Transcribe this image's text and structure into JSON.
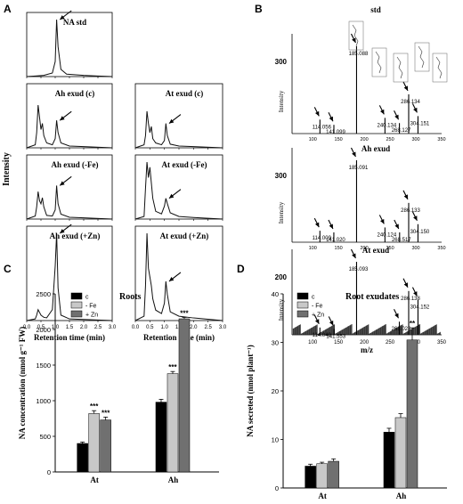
{
  "panel_letters": [
    "A",
    "B",
    "C",
    "D"
  ],
  "chart_data": [
    {
      "id": "A",
      "type": "line",
      "ylabel": "Intensity",
      "xlabel": "Retention time (min)",
      "xlim": [
        0,
        3
      ],
      "x_ticks": [
        "0.0",
        "0.5",
        "1.0",
        "1.5",
        "2.0",
        "2.5",
        "3.0"
      ],
      "subplots": [
        {
          "name": "NA std",
          "x": [
            0.3,
            0.6,
            0.9,
            1.0,
            1.05,
            1.1,
            1.2,
            1.4,
            2.0,
            2.5
          ],
          "y": [
            1,
            2,
            6,
            25,
            95,
            50,
            12,
            4,
            2,
            1
          ]
        },
        {
          "name": "Ah exud (c)",
          "x": [
            0.3,
            0.35,
            0.4,
            0.45,
            0.5,
            0.55,
            0.6,
            0.7,
            0.9,
            1.0,
            1.05,
            1.1,
            1.2,
            1.5,
            2.0
          ],
          "y": [
            5,
            25,
            70,
            50,
            30,
            40,
            20,
            8,
            5,
            15,
            45,
            25,
            8,
            3,
            2
          ]
        },
        {
          "name": "At exud (c)",
          "x": [
            0.3,
            0.35,
            0.4,
            0.45,
            0.5,
            0.55,
            0.6,
            0.7,
            0.9,
            1.0,
            1.05,
            1.1,
            1.2,
            1.5,
            2.0
          ],
          "y": [
            5,
            20,
            60,
            40,
            25,
            35,
            15,
            8,
            5,
            12,
            40,
            20,
            6,
            3,
            2
          ]
        },
        {
          "name": "Ah exud (-Fe)",
          "x": [
            0.3,
            0.35,
            0.4,
            0.45,
            0.5,
            0.55,
            0.6,
            0.7,
            0.9,
            1.0,
            1.05,
            1.1,
            1.2,
            1.5,
            2.0
          ],
          "y": [
            5,
            20,
            45,
            30,
            25,
            35,
            20,
            6,
            5,
            15,
            55,
            25,
            8,
            3,
            2
          ]
        },
        {
          "name": "At exud (-Fe)",
          "x": [
            0.3,
            0.35,
            0.4,
            0.45,
            0.5,
            0.55,
            0.6,
            0.7,
            0.9,
            1.0,
            1.05,
            1.1,
            1.2,
            1.5,
            2.0
          ],
          "y": [
            5,
            60,
            110,
            80,
            100,
            70,
            40,
            15,
            10,
            25,
            40,
            30,
            12,
            5,
            3
          ]
        },
        {
          "name": "Ah exud (+Zn)",
          "x": [
            0.3,
            0.35,
            0.4,
            0.45,
            0.5,
            0.55,
            0.6,
            0.7,
            0.9,
            1.0,
            1.05,
            1.1,
            1.2,
            1.5,
            2.0
          ],
          "y": [
            3,
            10,
            20,
            15,
            10,
            8,
            6,
            5,
            20,
            100,
            160,
            60,
            10,
            3,
            2
          ]
        },
        {
          "name": "At exud (+Zn)",
          "x": [
            0.3,
            0.35,
            0.4,
            0.45,
            0.5,
            0.55,
            0.6,
            0.7,
            0.9,
            1.0,
            1.05,
            1.1,
            1.2,
            1.5,
            2.0
          ],
          "y": [
            5,
            40,
            100,
            60,
            50,
            40,
            25,
            12,
            8,
            20,
            45,
            30,
            10,
            5,
            3
          ]
        }
      ]
    },
    {
      "id": "B",
      "type": "bar",
      "ylabel": "Intensity",
      "xlabel": "m/z",
      "xlim": [
        60,
        350
      ],
      "x_ticks": [
        "100",
        "150",
        "200",
        "250",
        "300",
        "350"
      ],
      "subplots": [
        {
          "name": "std",
          "ytick": "300",
          "peaks": [
            [
              114.056,
              16
            ],
            [
              141.099,
              10
            ],
            [
              185.088,
              100
            ],
            [
              240.134,
              18
            ],
            [
              268.127,
              12
            ],
            [
              286.134,
              45
            ],
            [
              304.151,
              20
            ]
          ],
          "labels": [
            "114.056",
            "141.099",
            "185.088",
            "240.134",
            "268.127",
            "286.134",
            "304.151"
          ]
        },
        {
          "name": "Ah exud",
          "ytick": "300",
          "peaks": [
            [
              114.009,
              14
            ],
            [
              141.02,
              12
            ],
            [
              185.091,
              100
            ],
            [
              240.124,
              18
            ],
            [
              268.517,
              12
            ],
            [
              286.133,
              48
            ],
            [
              304.15,
              22
            ]
          ],
          "labels": [
            "114.009",
            "141.020",
            "185.091",
            "240.124",
            "268.517",
            "286.133",
            "304.150"
          ]
        },
        {
          "name": "At exud",
          "ytick": "200",
          "peaks": [
            [
              114.048,
              10
            ],
            [
              141.553,
              8
            ],
            [
              185.093,
              100
            ],
            [
              268.023,
              18
            ],
            [
              286.138,
              60
            ],
            [
              304.152,
              48
            ]
          ],
          "labels": [
            "114.048",
            "141.553",
            "185.093",
            "268.023",
            "286.138",
            "304.152"
          ]
        }
      ]
    },
    {
      "id": "C",
      "type": "bar",
      "title": "Roots",
      "ylabel": "NA concentration (nmol g⁻¹ FW)",
      "categories": [
        "At",
        "Ah"
      ],
      "ylim": [
        0,
        2500
      ],
      "y_ticks": [
        "0",
        "500",
        "1000",
        "1500",
        "2000",
        "2500"
      ],
      "series": [
        {
          "name": "c",
          "color": "#000000",
          "values": [
            400,
            980
          ],
          "errors": [
            20,
            40
          ],
          "sig": [
            "",
            ""
          ]
        },
        {
          "name": "- Fe",
          "color": "#c8c8c8",
          "values": [
            820,
            1380
          ],
          "errors": [
            40,
            30
          ],
          "sig": [
            "***",
            "***"
          ]
        },
        {
          "name": "+ Zn",
          "color": "#707070",
          "values": [
            730,
            2150
          ],
          "errors": [
            40,
            20
          ],
          "sig": [
            "***",
            "***"
          ]
        }
      ]
    },
    {
      "id": "D",
      "type": "bar",
      "title": "Root exudates",
      "ylabel": "NA secreted (nmol plant⁻¹)",
      "categories": [
        "At",
        "Ah"
      ],
      "ylim": [
        0,
        40
      ],
      "y_ticks": [
        "0",
        "10",
        "20",
        "30",
        "40"
      ],
      "series": [
        {
          "name": "c",
          "color": "#000000",
          "values": [
            4.5,
            11.5
          ],
          "errors": [
            0.4,
            0.8
          ],
          "sig": [
            "",
            ""
          ]
        },
        {
          "name": "- Fe",
          "color": "#c8c8c8",
          "values": [
            5.0,
            14.5
          ],
          "errors": [
            0.3,
            0.8
          ],
          "sig": [
            "",
            ""
          ]
        },
        {
          "name": "+ Zn",
          "color": "#707070",
          "values": [
            5.5,
            30.5
          ],
          "errors": [
            0.5,
            2.5
          ],
          "sig": [
            "",
            "**"
          ]
        }
      ]
    }
  ]
}
